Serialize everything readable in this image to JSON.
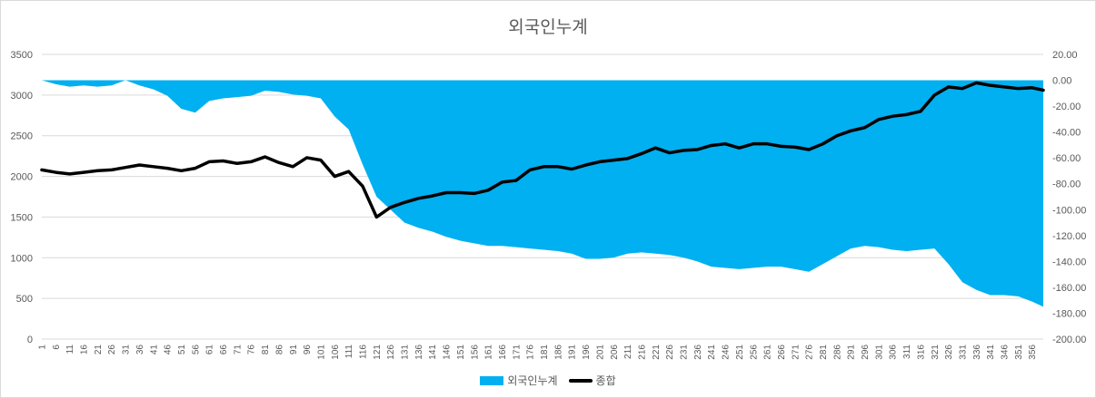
{
  "chart_data": {
    "type": "area",
    "title": "외국인누계",
    "x_range": [
      1,
      360
    ],
    "x_tick_labels": [
      "1",
      "6",
      "11",
      "16",
      "21",
      "26",
      "31",
      "36",
      "41",
      "46",
      "51",
      "56",
      "61",
      "66",
      "71",
      "76",
      "81",
      "86",
      "91",
      "96",
      "101",
      "106",
      "111",
      "116",
      "121",
      "126",
      "131",
      "136",
      "141",
      "146",
      "151",
      "156",
      "161",
      "166",
      "171",
      "176",
      "181",
      "186",
      "191",
      "196",
      "201",
      "206",
      "211",
      "216",
      "221",
      "226",
      "231",
      "236",
      "241",
      "246",
      "251",
      "256",
      "261",
      "266",
      "271",
      "276",
      "281",
      "286",
      "291",
      "296",
      "301",
      "306",
      "311",
      "316",
      "321",
      "326",
      "331",
      "336",
      "341",
      "346",
      "351",
      "356"
    ],
    "y_left": {
      "min": 0,
      "max": 3500,
      "ticks": [
        "0",
        "500",
        "1000",
        "1500",
        "2000",
        "2500",
        "3000",
        "3500"
      ]
    },
    "y_right": {
      "min": -200,
      "max": 20,
      "ticks": [
        "-200.00",
        "-180.00",
        "-160.00",
        "-140.00",
        "-120.00",
        "-100.00",
        "-80.00",
        "-60.00",
        "-40.00",
        "-20.00",
        "0.00",
        "20.00"
      ]
    },
    "grid": true,
    "legend_position": "bottom",
    "series": [
      {
        "name": "외국인누계",
        "kind": "area",
        "axis": "right",
        "color": "#00b0f0",
        "x": [
          1,
          6,
          11,
          16,
          21,
          26,
          31,
          36,
          41,
          46,
          51,
          56,
          61,
          66,
          71,
          76,
          81,
          86,
          91,
          96,
          101,
          106,
          111,
          116,
          121,
          126,
          131,
          136,
          141,
          146,
          151,
          156,
          161,
          166,
          171,
          176,
          181,
          186,
          191,
          196,
          201,
          206,
          211,
          216,
          221,
          226,
          231,
          236,
          241,
          246,
          251,
          256,
          261,
          266,
          271,
          276,
          281,
          286,
          291,
          296,
          301,
          306,
          311,
          316,
          321,
          326,
          331,
          336,
          341,
          346,
          351,
          356,
          360
        ],
        "y": [
          0,
          -3,
          -5,
          -4,
          -5,
          -4,
          0,
          -4,
          -7,
          -12,
          -22,
          -25,
          -16,
          -14,
          -13,
          -12,
          -8,
          -9,
          -11,
          -12,
          -14,
          -28,
          -38,
          -65,
          -90,
          -100,
          -110,
          -114,
          -117,
          -121,
          -124,
          -126,
          -128,
          -128,
          -129,
          -130,
          -131,
          -132,
          -134,
          -138,
          -138,
          -137,
          -134,
          -133,
          -134,
          -135,
          -137,
          -140,
          -144,
          -145,
          -146,
          -145,
          -144,
          -144,
          -146,
          -148,
          -142,
          -136,
          -130,
          -128,
          -129,
          -131,
          -132,
          -131,
          -130,
          -142,
          -156,
          -162,
          -166,
          -166,
          -167,
          -171,
          -175
        ]
      },
      {
        "name": "종합",
        "kind": "line",
        "axis": "left",
        "color": "#000000",
        "x": [
          1,
          6,
          11,
          16,
          21,
          26,
          31,
          36,
          41,
          46,
          51,
          56,
          61,
          66,
          71,
          76,
          81,
          86,
          91,
          96,
          101,
          106,
          111,
          116,
          121,
          126,
          131,
          136,
          141,
          146,
          151,
          156,
          161,
          166,
          171,
          176,
          181,
          186,
          191,
          196,
          201,
          206,
          211,
          216,
          221,
          226,
          231,
          236,
          241,
          246,
          251,
          256,
          261,
          266,
          271,
          276,
          281,
          286,
          291,
          296,
          301,
          306,
          311,
          316,
          321,
          326,
          331,
          336,
          341,
          346,
          351,
          356,
          360
        ],
        "y": [
          2080,
          2050,
          2030,
          2050,
          2070,
          2080,
          2110,
          2140,
          2120,
          2100,
          2070,
          2100,
          2180,
          2190,
          2160,
          2180,
          2240,
          2170,
          2120,
          2230,
          2200,
          2000,
          2060,
          1880,
          1500,
          1620,
          1680,
          1730,
          1760,
          1800,
          1800,
          1790,
          1830,
          1930,
          1950,
          2080,
          2120,
          2120,
          2090,
          2140,
          2180,
          2200,
          2220,
          2280,
          2350,
          2290,
          2320,
          2330,
          2380,
          2400,
          2350,
          2400,
          2400,
          2370,
          2360,
          2330,
          2400,
          2500,
          2560,
          2600,
          2700,
          2740,
          2760,
          2800,
          3000,
          3100,
          3080,
          3150,
          3120,
          3100,
          3080,
          3090,
          3060
        ]
      }
    ]
  }
}
